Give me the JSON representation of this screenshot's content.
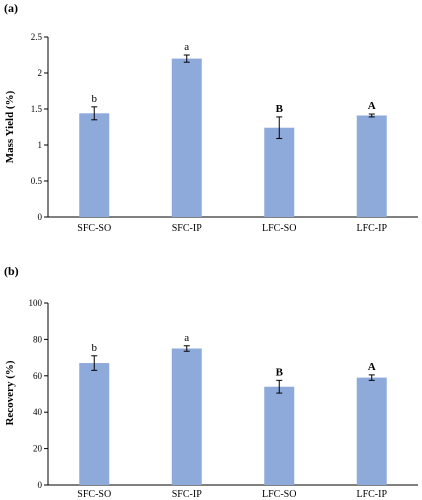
{
  "chart_data": [
    {
      "type": "bar",
      "panel_label": "(a)",
      "ylabel": "Mass Yield (%)",
      "categories": [
        "SFC-SO",
        "SFC-IP",
        "LFC-SO",
        "LFC-IP"
      ],
      "values": [
        1.44,
        2.2,
        1.24,
        1.41
      ],
      "errors": [
        0.09,
        0.05,
        0.15,
        0.02
      ],
      "significance": [
        "b",
        "a",
        "B",
        "A"
      ],
      "ylim": [
        0,
        2.5
      ],
      "yticks": [
        "0",
        "0.5",
        "1",
        "1.5",
        "2",
        "2.5"
      ],
      "bar_color": "#8eaadb"
    },
    {
      "type": "bar",
      "panel_label": "(b)",
      "ylabel": "Recovery (%)",
      "categories": [
        "SFC-SO",
        "SFC-IP",
        "LFC-SO",
        "LFC-IP"
      ],
      "values": [
        67,
        75,
        54,
        59
      ],
      "errors": [
        4,
        1.5,
        3.5,
        1.5
      ],
      "significance": [
        "b",
        "a",
        "B",
        "A"
      ],
      "ylim": [
        0,
        100
      ],
      "yticks": [
        "0",
        "20",
        "40",
        "60",
        "80",
        "100"
      ],
      "bar_color": "#8eaadb"
    }
  ]
}
